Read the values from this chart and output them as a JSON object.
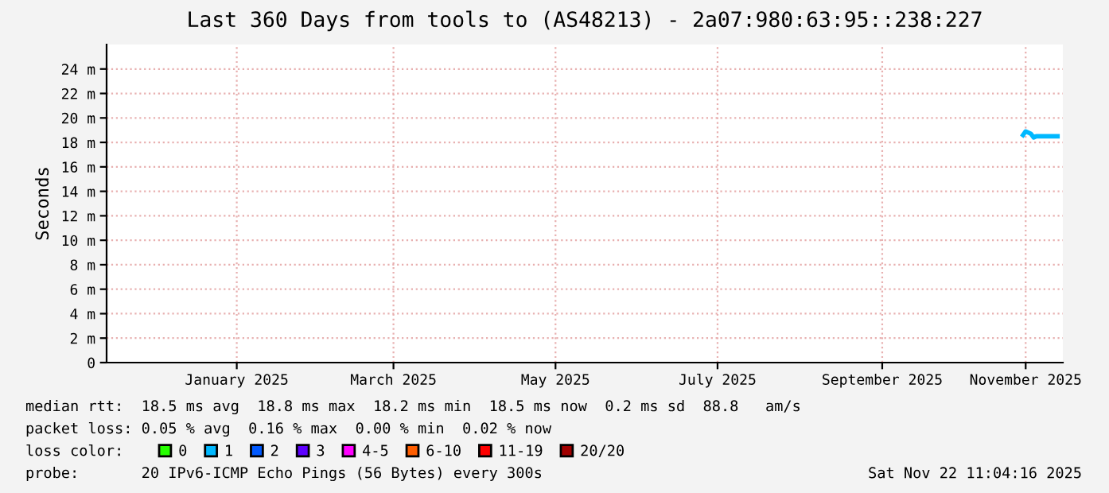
{
  "chart_data": {
    "type": "line",
    "title": "Last 360 Days from tools to (AS48213) - 2a07:980:63:95::238:227",
    "ylabel": "Seconds",
    "xlim": [
      "2024-11-27",
      "2025-11-22"
    ],
    "xticks": [
      {
        "value": "2025-01-15",
        "label": "January 2025"
      },
      {
        "value": "2025-03-15",
        "label": "March 2025"
      },
      {
        "value": "2025-05-15",
        "label": "May 2025"
      },
      {
        "value": "2025-07-15",
        "label": "July 2025"
      },
      {
        "value": "2025-09-15",
        "label": "September 2025"
      },
      {
        "value": "2025-11-08",
        "label": "November 2025"
      }
    ],
    "ylim": [
      0,
      26
    ],
    "yticks": [
      0,
      {
        "value": 2,
        "label": "2 m"
      },
      {
        "value": 4,
        "label": "4 m"
      },
      {
        "value": 6,
        "label": "6 m"
      },
      {
        "value": 8,
        "label": "8 m"
      },
      {
        "value": 10,
        "label": "10 m"
      },
      {
        "value": 12,
        "label": "12 m"
      },
      {
        "value": 14,
        "label": "14 m"
      },
      {
        "value": 16,
        "label": "16 m"
      },
      {
        "value": 18,
        "label": "18 m"
      },
      {
        "value": 20,
        "label": "20 m"
      },
      {
        "value": 22,
        "label": "22 m"
      },
      {
        "value": 24,
        "label": "24 m"
      }
    ],
    "grid": true,
    "legend": "bottom",
    "legend_title": "loss color:",
    "series": [
      {
        "name": "0",
        "color": "#26ff00"
      },
      {
        "name": "1",
        "color": "#00b8ff",
        "x": [
          "2025-11-07",
          "2025-11-08",
          "2025-11-10",
          "2025-11-11",
          "2025-11-12",
          "2025-11-14",
          "2025-11-16",
          "2025-11-18",
          "2025-11-20"
        ],
        "values": [
          18.6,
          18.9,
          18.7,
          18.4,
          18.5,
          18.5,
          18.5,
          18.5,
          18.5
        ]
      },
      {
        "name": "2",
        "color": "#0059ff"
      },
      {
        "name": "3",
        "color": "#5e00ff"
      },
      {
        "name": "4-5",
        "color": "#ff00ff"
      },
      {
        "name": "6-10",
        "color": "#ff5e00"
      },
      {
        "name": "11-19",
        "color": "#ff0000"
      },
      {
        "name": "20/20",
        "color": "#a10000"
      }
    ],
    "annotations": [
      "median rtt:  18.5 ms avg  18.8 ms max  18.2 ms min  18.5 ms now  0.2 ms sd  88.8   am/s",
      "packet loss: 0.05 % avg  0.16 % max  0.00 % min  0.02 % now",
      "probe:       20 IPv6-ICMP Echo Pings (56 Bytes) every 300s",
      "Sat Nov 22 11:04:16 2025"
    ]
  }
}
